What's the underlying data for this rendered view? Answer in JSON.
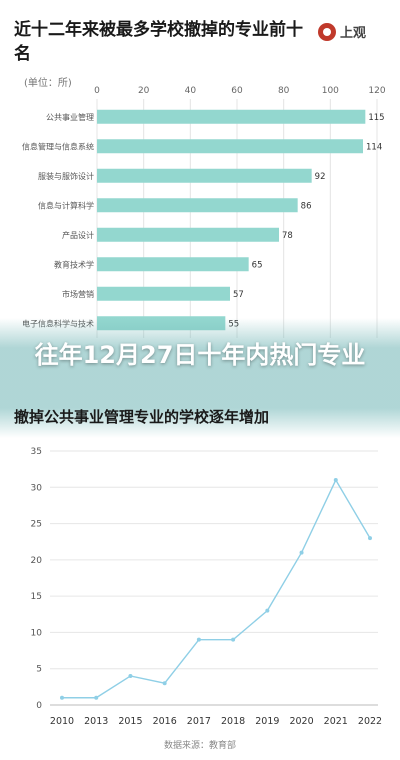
{
  "header": {
    "title": "近十二年来被最多学校撤掉的专业前十名",
    "brand": "上观",
    "unit": "(单位：所)"
  },
  "overlay": {
    "headline": "往年12月27日十年内热门专业"
  },
  "chart_data": [
    {
      "type": "bar",
      "orientation": "horizontal",
      "title": "近十二年来被最多学校撤掉的专业前十名",
      "categories": [
        "公共事业管理",
        "信息管理与信息系统",
        "服装与服饰设计",
        "信息与计算科学",
        "产品设计",
        "教育技术学",
        "市场营销",
        "电子信息科学与技术"
      ],
      "values": [
        115,
        114,
        92,
        86,
        78,
        65,
        57,
        55
      ],
      "xlim": [
        0,
        120
      ],
      "xticks": [
        0,
        20,
        40,
        60,
        80,
        100,
        120
      ],
      "grid": true,
      "color": "#93d7cf"
    },
    {
      "type": "line",
      "title": "撤掉公共事业管理专业的学校逐年增加",
      "x": [
        "2010",
        "2013",
        "2015",
        "2016",
        "2017",
        "2018",
        "2019",
        "2020",
        "2021",
        "2022"
      ],
      "values": [
        1,
        1,
        4,
        3,
        9,
        9,
        13,
        21,
        31,
        23
      ],
      "ylim": [
        0,
        35
      ],
      "yticks": [
        0,
        5,
        10,
        15,
        20,
        25,
        30,
        35
      ],
      "grid": true,
      "color": "#8fcfe6",
      "source": "数据来源：教育部"
    }
  ]
}
